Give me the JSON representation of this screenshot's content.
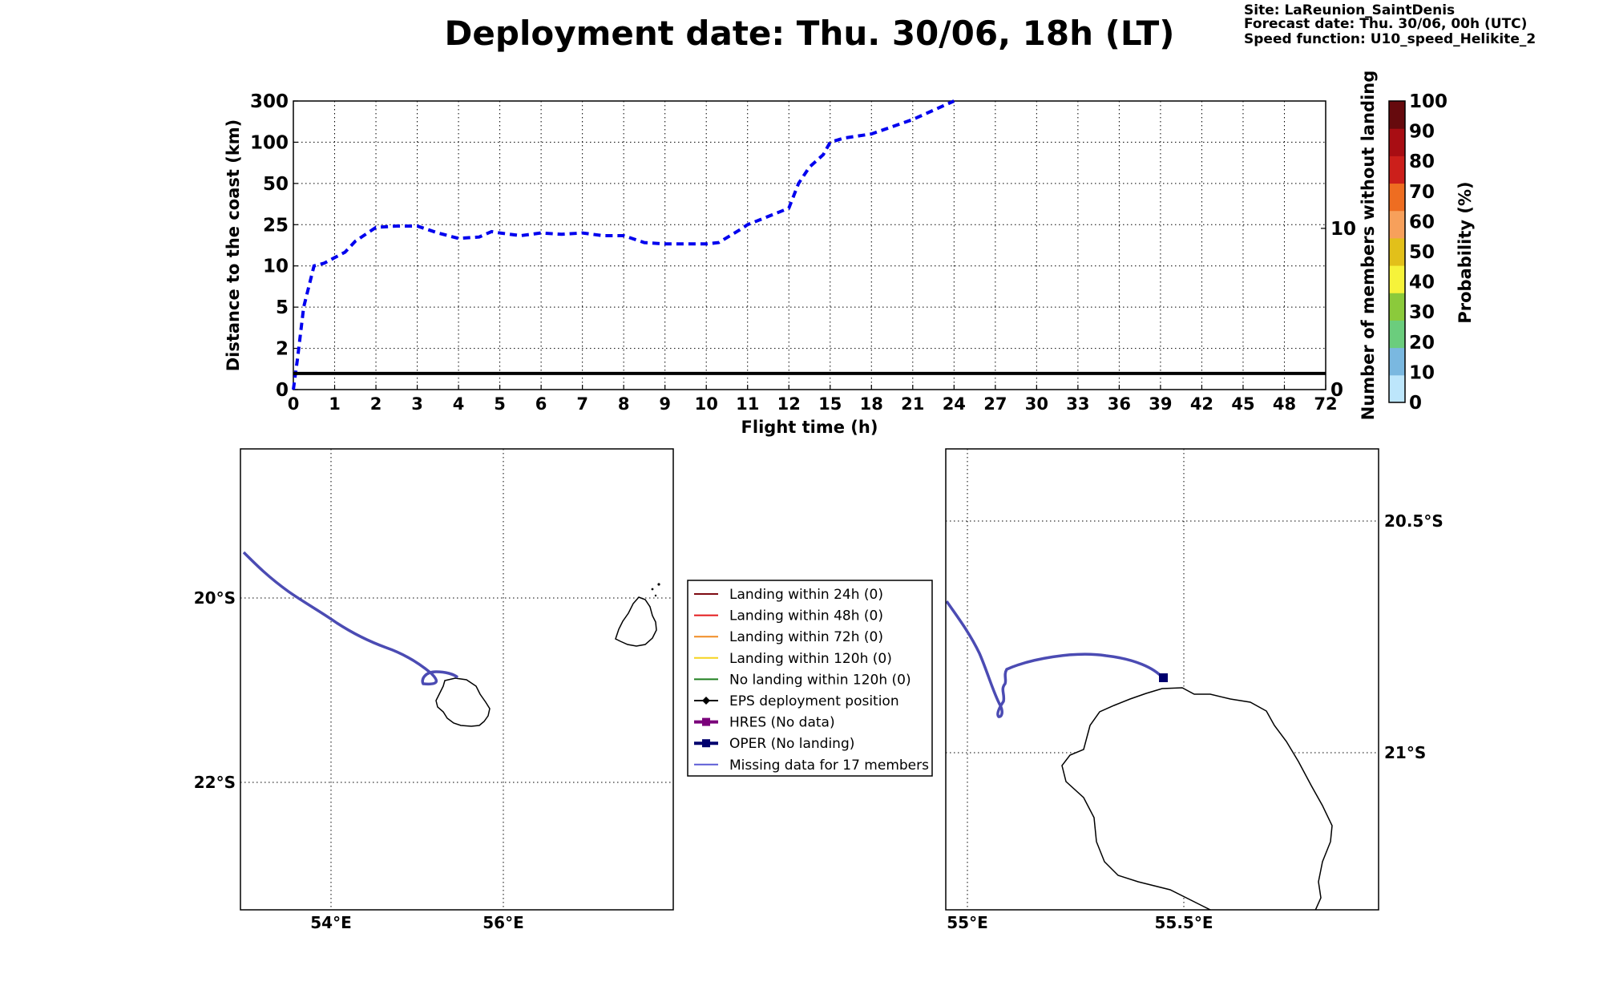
{
  "header": {
    "title": "Deployment date: Thu. 30/06, 18h (LT)",
    "site": "Site: LaReunion_SaintDenis",
    "forecast": "Forecast date: Thu. 30/06, 00h (UTC)",
    "speed": "Speed function: U10_speed_Helikite_2"
  },
  "chart_data": [
    {
      "type": "line",
      "xlabel": "Flight time (h)",
      "ylabel": "Distance to the coast (km)",
      "y2label": "Number of members without landing",
      "x_ticks": [
        "0",
        "1",
        "2",
        "3",
        "4",
        "5",
        "6",
        "7",
        "8",
        "9",
        "10",
        "11",
        "12",
        "15",
        "18",
        "21",
        "24",
        "27",
        "30",
        "33",
        "36",
        "39",
        "42",
        "45",
        "48",
        "72"
      ],
      "y_ticks": [
        "0",
        "2",
        "5",
        "10",
        "25",
        "50",
        "100",
        "300"
      ],
      "y2_ticks": [
        "0",
        "10"
      ],
      "grid": true,
      "series": [
        {
          "style": "dashed",
          "color": "#0000ee",
          "x": [
            0,
            0.1,
            0.25,
            0.5,
            0.75,
            1,
            1.25,
            1.5,
            2,
            2.5,
            3,
            3.5,
            4,
            4.5,
            4.8,
            5,
            5.5,
            6,
            6.5,
            7,
            7.5,
            8,
            8.5,
            9,
            9.5,
            10,
            10.3,
            10.8,
            11,
            11.5,
            12,
            12.7,
            13.5,
            14.5,
            15,
            16,
            18,
            21,
            24
          ],
          "y": [
            0,
            1.5,
            5,
            10,
            11,
            13,
            15,
            19,
            24,
            24.5,
            24.5,
            22,
            20,
            20.5,
            22.5,
            22,
            21,
            22,
            21.5,
            22,
            21,
            21,
            18.5,
            18,
            18,
            18,
            18.5,
            23,
            25,
            30,
            35,
            50,
            70,
            85,
            100,
            120,
            140,
            210,
            300
          ]
        },
        {
          "style": "solid",
          "color": "#000000",
          "x": [
            0,
            72
          ],
          "y2": [
            1,
            1
          ]
        }
      ]
    }
  ],
  "colorbar": {
    "label": "Probability (%)",
    "ticks": [
      "0",
      "10",
      "20",
      "30",
      "40",
      "50",
      "60",
      "70",
      "80",
      "90",
      "100"
    ],
    "colors": [
      "#bde6fb",
      "#7ab8e0",
      "#6bcd7d",
      "#8bca3b",
      "#f6f33a",
      "#e2c01a",
      "#f7a05b",
      "#ee6d21",
      "#cc1f1b",
      "#a80d13",
      "#660a0d"
    ]
  },
  "map_left": {
    "lon_ticks": [
      "54°E",
      "56°E"
    ],
    "lat_ticks": [
      "20°S",
      "22°S"
    ]
  },
  "map_right": {
    "lon_ticks": [
      "55°E",
      "55.5°E"
    ],
    "lat_ticks": [
      "20.5°S",
      "21°S"
    ]
  },
  "legend": [
    {
      "label": "Landing within 24h (0)",
      "color": "#7e0a12",
      "marker": "none",
      "width": 2
    },
    {
      "label": "Landing within 48h (0)",
      "color": "#e41a1c",
      "marker": "none",
      "width": 2
    },
    {
      "label": "Landing within 72h (0)",
      "color": "#f08c23",
      "marker": "none",
      "width": 2
    },
    {
      "label": "Landing within 120h (0)",
      "color": "#f5d31d",
      "marker": "none",
      "width": 2
    },
    {
      "label": "No landing within 120h (0)",
      "color": "#1f7f1f",
      "marker": "none",
      "width": 2
    },
    {
      "label": "EPS deployment position",
      "color": "#000000",
      "marker": "diamond",
      "width": 2
    },
    {
      "label": "HRES (No data)",
      "color": "#7a007a",
      "marker": "square",
      "width": 4
    },
    {
      "label": "OPER (No landing)",
      "color": "#00006e",
      "marker": "square",
      "width": 4
    },
    {
      "label": "Missing data for 17 members",
      "color": "#5b5bd6",
      "marker": "none",
      "width": 2
    }
  ]
}
